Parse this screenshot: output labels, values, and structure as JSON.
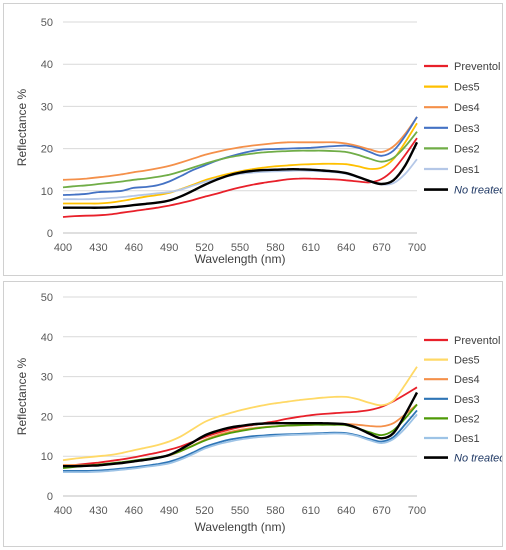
{
  "chart_data": [
    {
      "type": "line",
      "xlabel": "Wavelength (nm)",
      "ylabel": "Reflectance %",
      "xlim": [
        400,
        700
      ],
      "ylim": [
        0,
        50
      ],
      "xticks": [
        "400",
        "430",
        "460",
        "490",
        "520",
        "550",
        "580",
        "610",
        "640",
        "670",
        "700"
      ],
      "yticks": [
        "0",
        "10",
        "20",
        "30",
        "40",
        "50"
      ],
      "grid": "horizontal",
      "legend": "right",
      "x": [
        400,
        410,
        420,
        430,
        440,
        450,
        460,
        470,
        480,
        490,
        500,
        510,
        520,
        530,
        540,
        550,
        560,
        570,
        580,
        590,
        600,
        610,
        620,
        630,
        640,
        650,
        660,
        670,
        680,
        690,
        700
      ],
      "series": [
        {
          "name": "Preventol",
          "color": "#e8202a",
          "italic": false,
          "values": [
            3.8,
            4.0,
            4.1,
            4.2,
            4.4,
            4.8,
            5.2,
            5.6,
            6.0,
            6.5,
            7.1,
            7.8,
            8.6,
            9.3,
            10.1,
            10.8,
            11.4,
            11.9,
            12.3,
            12.7,
            12.9,
            12.9,
            12.8,
            12.7,
            12.5,
            12.2,
            12.0,
            12.8,
            15.0,
            18.5,
            22.5
          ]
        },
        {
          "name": "Des5",
          "color": "#ffc000",
          "italic": false,
          "values": [
            7.0,
            7.0,
            7.0,
            7.0,
            7.2,
            7.6,
            8.1,
            8.6,
            9.0,
            9.5,
            10.4,
            11.4,
            12.5,
            13.3,
            14.0,
            14.6,
            15.1,
            15.5,
            15.8,
            16.0,
            16.2,
            16.3,
            16.4,
            16.4,
            16.3,
            15.8,
            15.2,
            15.5,
            17.5,
            21.5,
            26.0
          ]
        },
        {
          "name": "Des4",
          "color": "#f4904a",
          "italic": false,
          "values": [
            12.6,
            12.7,
            12.9,
            13.2,
            13.5,
            13.9,
            14.4,
            14.8,
            15.3,
            15.9,
            16.7,
            17.6,
            18.5,
            19.2,
            19.8,
            20.3,
            20.7,
            21.0,
            21.3,
            21.5,
            21.5,
            21.5,
            21.5,
            21.5,
            21.2,
            20.6,
            19.8,
            19.2,
            20.5,
            23.5,
            27.5
          ]
        },
        {
          "name": "Des3",
          "color": "#4472c4",
          "italic": false,
          "values": [
            9.0,
            9.1,
            9.3,
            9.7,
            9.8,
            10.0,
            10.7,
            10.9,
            11.3,
            12.2,
            13.5,
            14.9,
            16.0,
            17.1,
            18.0,
            18.8,
            19.4,
            19.8,
            19.9,
            20.0,
            20.1,
            20.2,
            20.4,
            20.6,
            20.7,
            20.2,
            19.2,
            18.3,
            19.5,
            23.0,
            27.5
          ]
        },
        {
          "name": "Des2",
          "color": "#70ad47",
          "italic": false,
          "values": [
            10.8,
            11.1,
            11.3,
            11.6,
            11.9,
            12.2,
            12.6,
            12.9,
            13.3,
            13.8,
            14.6,
            15.5,
            16.4,
            17.2,
            17.9,
            18.4,
            18.8,
            19.1,
            19.3,
            19.4,
            19.5,
            19.5,
            19.5,
            19.4,
            19.2,
            18.5,
            17.6,
            16.9,
            17.8,
            20.5,
            24.0
          ]
        },
        {
          "name": "Des1",
          "color": "#b4c7e7",
          "italic": false,
          "values": [
            8.0,
            8.0,
            8.0,
            8.1,
            8.3,
            8.5,
            8.8,
            9.1,
            9.4,
            9.7,
            10.3,
            11.2,
            12.1,
            12.9,
            13.5,
            14.0,
            14.3,
            14.5,
            14.6,
            14.7,
            14.8,
            14.7,
            14.6,
            14.4,
            14.0,
            13.2,
            12.2,
            11.5,
            11.8,
            14.0,
            17.5
          ]
        },
        {
          "name": "No treated",
          "color": "#000000",
          "italic": true,
          "values": [
            6.0,
            6.0,
            6.0,
            6.0,
            6.1,
            6.3,
            6.6,
            6.9,
            7.2,
            7.7,
            8.7,
            10.0,
            11.4,
            12.6,
            13.6,
            14.3,
            14.7,
            14.9,
            15.0,
            15.1,
            15.1,
            15.0,
            14.8,
            14.6,
            14.2,
            13.3,
            12.3,
            11.6,
            12.5,
            16.0,
            21.5
          ]
        }
      ]
    },
    {
      "type": "line",
      "xlabel": "Wavelength (nm)",
      "ylabel": "Reflectance %",
      "xlim": [
        400,
        700
      ],
      "ylim": [
        0,
        50
      ],
      "xticks": [
        "400",
        "430",
        "460",
        "490",
        "520",
        "550",
        "580",
        "610",
        "640",
        "670",
        "700"
      ],
      "yticks": [
        "0",
        "10",
        "20",
        "30",
        "40",
        "50"
      ],
      "grid": "horizontal",
      "legend": "right",
      "x": [
        400,
        410,
        420,
        430,
        440,
        450,
        460,
        470,
        480,
        490,
        500,
        510,
        520,
        530,
        540,
        550,
        560,
        570,
        580,
        590,
        600,
        610,
        620,
        630,
        640,
        650,
        660,
        670,
        680,
        690,
        700
      ],
      "series": [
        {
          "name": "Preventol",
          "color": "#e8202a",
          "italic": false,
          "values": [
            7.5,
            7.8,
            8.1,
            8.4,
            8.8,
            9.2,
            9.7,
            10.3,
            10.9,
            11.6,
            12.5,
            13.6,
            14.8,
            15.8,
            16.6,
            17.3,
            17.8,
            18.3,
            18.8,
            19.4,
            19.9,
            20.3,
            20.6,
            20.8,
            21.0,
            21.2,
            21.6,
            22.4,
            23.8,
            25.5,
            27.3
          ]
        },
        {
          "name": "Des5",
          "color": "#ffd966",
          "italic": false,
          "values": [
            9.0,
            9.4,
            9.7,
            10.0,
            10.3,
            10.8,
            11.5,
            12.1,
            12.8,
            13.7,
            15.0,
            16.8,
            18.6,
            19.8,
            20.7,
            21.5,
            22.2,
            22.8,
            23.3,
            23.7,
            24.1,
            24.4,
            24.7,
            24.9,
            24.9,
            24.3,
            23.4,
            22.8,
            24.0,
            28.0,
            32.5
          ]
        },
        {
          "name": "Des4",
          "color": "#f4904a",
          "italic": false,
          "values": [
            7.8,
            7.8,
            7.8,
            7.9,
            8.1,
            8.4,
            8.8,
            9.2,
            9.6,
            10.2,
            11.3,
            12.7,
            14.1,
            15.2,
            16.0,
            16.6,
            17.0,
            17.3,
            17.5,
            17.7,
            17.8,
            17.9,
            18.0,
            18.1,
            18.1,
            17.9,
            17.6,
            17.5,
            18.3,
            20.5,
            23.0
          ]
        },
        {
          "name": "Des3",
          "color": "#2e75b6",
          "italic": false,
          "values": [
            6.3,
            6.3,
            6.3,
            6.4,
            6.6,
            6.9,
            7.2,
            7.6,
            8.0,
            8.6,
            9.6,
            10.9,
            12.3,
            13.3,
            14.1,
            14.6,
            15.0,
            15.2,
            15.4,
            15.5,
            15.6,
            15.7,
            15.8,
            15.9,
            15.8,
            15.2,
            14.3,
            13.7,
            14.8,
            18.0,
            21.5
          ]
        },
        {
          "name": "Des2",
          "color": "#4e9a06",
          "italic": false,
          "values": [
            7.0,
            7.3,
            7.6,
            7.9,
            8.2,
            8.5,
            8.9,
            9.3,
            9.7,
            10.3,
            11.3,
            12.6,
            13.9,
            14.9,
            15.7,
            16.3,
            16.8,
            17.2,
            17.5,
            17.7,
            17.8,
            17.9,
            17.9,
            17.9,
            17.8,
            17.0,
            16.0,
            15.3,
            16.5,
            19.5,
            23.0
          ]
        },
        {
          "name": "Des1",
          "color": "#9dc3e6",
          "italic": false,
          "values": [
            6.0,
            6.0,
            6.0,
            6.1,
            6.3,
            6.6,
            6.9,
            7.3,
            7.7,
            8.2,
            9.2,
            10.5,
            11.9,
            12.9,
            13.6,
            14.2,
            14.6,
            14.9,
            15.1,
            15.3,
            15.4,
            15.5,
            15.6,
            15.7,
            15.6,
            15.0,
            14.0,
            13.3,
            14.3,
            17.0,
            20.5
          ]
        },
        {
          "name": "No treated",
          "color": "#000000",
          "italic": true,
          "values": [
            7.5,
            7.5,
            7.6,
            7.7,
            8.0,
            8.3,
            8.7,
            9.1,
            9.6,
            10.3,
            11.8,
            13.5,
            15.2,
            16.3,
            17.1,
            17.6,
            18.0,
            18.2,
            18.3,
            18.3,
            18.3,
            18.3,
            18.3,
            18.2,
            18.0,
            17.0,
            15.6,
            14.5,
            15.8,
            20.5,
            26.0
          ]
        }
      ]
    }
  ]
}
